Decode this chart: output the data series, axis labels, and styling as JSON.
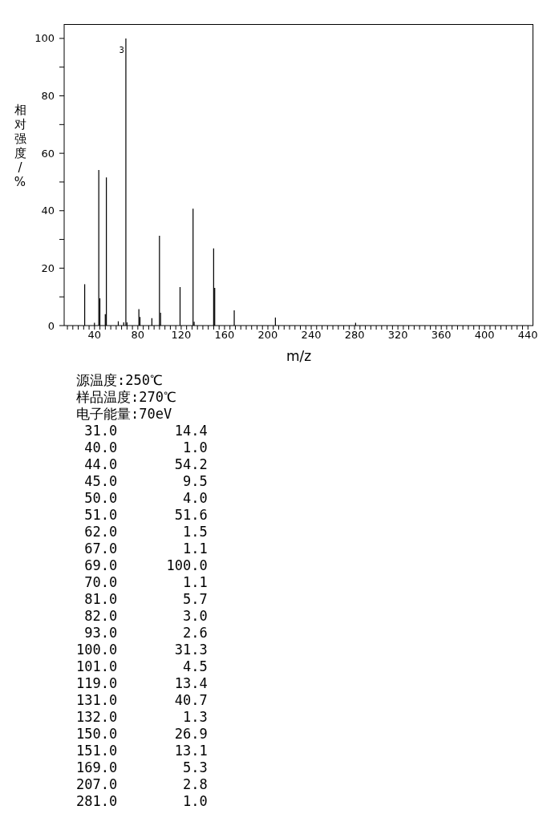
{
  "chart_data": {
    "type": "bar",
    "xlabel": "m/z",
    "ylabel": "相对强度/%",
    "x": [
      31,
      40,
      44,
      45,
      50,
      51,
      62,
      67,
      69,
      70,
      81,
      82,
      93,
      100,
      101,
      119,
      131,
      132,
      150,
      151,
      169,
      207,
      281
    ],
    "values": [
      14.4,
      1.0,
      54.2,
      9.5,
      4.0,
      51.6,
      1.5,
      1.1,
      100.0,
      1.1,
      5.7,
      3.0,
      2.6,
      31.3,
      4.5,
      13.4,
      40.7,
      1.3,
      26.9,
      13.1,
      5.3,
      2.8,
      1.0
    ],
    "color": "#000000",
    "xlim": [
      12,
      445
    ],
    "xticks": [
      {
        "value": 15,
        "label": null
      },
      {
        "value": 20,
        "label": null
      },
      {
        "value": 25,
        "label": null
      },
      {
        "value": 30,
        "label": null
      },
      {
        "value": 35,
        "label": null
      },
      40,
      {
        "value": 45,
        "label": null
      },
      {
        "value": 50,
        "label": null
      },
      {
        "value": 55,
        "label": null
      },
      {
        "value": 60,
        "label": null
      },
      {
        "value": 65,
        "label": null
      },
      {
        "value": 70,
        "label": null
      },
      {
        "value": 75,
        "label": null
      },
      80,
      {
        "value": 85,
        "label": null
      },
      {
        "value": 90,
        "label": null
      },
      {
        "value": 95,
        "label": null
      },
      {
        "value": 100,
        "label": null
      },
      {
        "value": 105,
        "label": null
      },
      {
        "value": 110,
        "label": null
      },
      {
        "value": 115,
        "label": null
      },
      120,
      {
        "value": 125,
        "label": null
      },
      {
        "value": 130,
        "label": null
      },
      {
        "value": 135,
        "label": null
      },
      {
        "value": 140,
        "label": null
      },
      {
        "value": 145,
        "label": null
      },
      {
        "value": 150,
        "label": null
      },
      {
        "value": 155,
        "label": null
      },
      160,
      {
        "value": 165,
        "label": null
      },
      {
        "value": 170,
        "label": null
      },
      {
        "value": 175,
        "label": null
      },
      {
        "value": 180,
        "label": null
      },
      {
        "value": 185,
        "label": null
      },
      {
        "value": 190,
        "label": null
      },
      {
        "value": 195,
        "label": null
      },
      200,
      {
        "value": 205,
        "label": null
      },
      {
        "value": 210,
        "label": null
      },
      {
        "value": 215,
        "label": null
      },
      {
        "value": 220,
        "label": null
      },
      {
        "value": 225,
        "label": null
      },
      {
        "value": 230,
        "label": null
      },
      {
        "value": 235,
        "label": null
      },
      240,
      {
        "value": 245,
        "label": null
      },
      {
        "value": 250,
        "label": null
      },
      {
        "value": 255,
        "label": null
      },
      {
        "value": 260,
        "label": null
      },
      {
        "value": 265,
        "label": null
      },
      {
        "value": 270,
        "label": null
      },
      {
        "value": 275,
        "label": null
      },
      280,
      {
        "value": 285,
        "label": null
      },
      {
        "value": 290,
        "label": null
      },
      {
        "value": 295,
        "label": null
      },
      {
        "value": 300,
        "label": null
      },
      {
        "value": 305,
        "label": null
      },
      {
        "value": 310,
        "label": null
      },
      {
        "value": 315,
        "label": null
      },
      320,
      {
        "value": 325,
        "label": null
      },
      {
        "value": 330,
        "label": null
      },
      {
        "value": 335,
        "label": null
      },
      {
        "value": 340,
        "label": null
      },
      {
        "value": 345,
        "label": null
      },
      {
        "value": 350,
        "label": null
      },
      {
        "value": 355,
        "label": null
      },
      360,
      {
        "value": 365,
        "label": null
      },
      {
        "value": 370,
        "label": null
      },
      {
        "value": 375,
        "label": null
      },
      {
        "value": 380,
        "label": null
      },
      {
        "value": 385,
        "label": null
      },
      {
        "value": 390,
        "label": null
      },
      {
        "value": 395,
        "label": null
      },
      400,
      {
        "value": 405,
        "label": null
      },
      {
        "value": 410,
        "label": null
      },
      {
        "value": 415,
        "label": null
      },
      {
        "value": 420,
        "label": null
      },
      {
        "value": 425,
        "label": null
      },
      {
        "value": 430,
        "label": null
      },
      {
        "value": 435,
        "label": null
      },
      440
    ],
    "ylim": [
      0,
      105
    ],
    "yticks": [
      0,
      {
        "value": 10,
        "label": null
      },
      20,
      {
        "value": 30,
        "label": null
      },
      40,
      {
        "value": 50,
        "label": null
      },
      60,
      {
        "value": 70,
        "label": null
      },
      80,
      {
        "value": 90,
        "label": null
      },
      100
    ],
    "annotations": [
      {
        "text": "3",
        "x": 69,
        "y": 96
      },
      "源温度:250℃",
      "样品温度:270℃",
      "电子能量:70eV",
      " 31.0       14.4",
      " 40.0        1.0",
      " 44.0       54.2",
      " 45.0        9.5",
      " 50.0        4.0",
      " 51.0       51.6",
      " 62.0        1.5",
      " 67.0        1.1",
      " 69.0      100.0",
      " 70.0        1.1",
      " 81.0        5.7",
      " 82.0        3.0",
      " 93.0        2.6",
      "100.0       31.3",
      "101.0        4.5",
      "119.0       13.4",
      "131.0       40.7",
      "132.0        1.3",
      "150.0       26.9",
      "151.0       13.1",
      "169.0        5.3",
      "207.0        2.8",
      "281.0        1.0"
    ]
  }
}
